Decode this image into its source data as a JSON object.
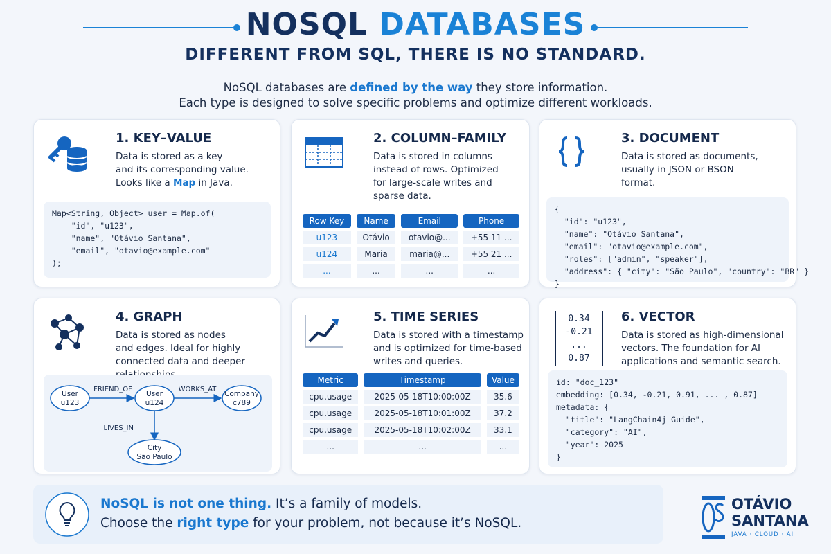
{
  "header": {
    "title": [
      "NOSQL",
      "DATABASES"
    ],
    "subtitle": "DIFFERENT FROM SQL, THERE IS NO STANDARD.",
    "intro": [
      [
        "NoSQL databases are ",
        {
          "text": "defined by the way",
          "style": "highlight"
        },
        " they store information."
      ],
      [
        "Each type is designed to solve specific problems and optimize different workloads."
      ]
    ]
  },
  "cards": [
    {
      "title": "1. KEY–VALUE",
      "description": [
        [
          "Data is stored as a key"
        ],
        [
          "and its corresponding value."
        ],
        [
          "Looks like a ",
          {
            "text": "Map",
            "style": "highlight"
          },
          " in Java."
        ]
      ],
      "code": [
        "Map<String, Object> user = Map.of(",
        "    \"id\", \"u123\",",
        "    \"name\", \"Otávio Santana\",",
        "    \"email\", \"otavio@example.com\"",
        ");"
      ]
    },
    {
      "title": "2. COLUMN–FAMILY",
      "description": [
        [
          "Data is stored in columns"
        ],
        [
          "instead of rows. Optimized"
        ],
        [
          "for large-scale writes and"
        ],
        [
          "sparse data."
        ]
      ],
      "table": {
        "columns": [
          "Row Key",
          "Name",
          "Email",
          "Phone"
        ],
        "rows": [
          [
            "u123",
            "Otávio",
            "otavio@...",
            "+55 11 ..."
          ],
          [
            "u124",
            "Maria",
            "maria@...",
            "+55 21 ..."
          ],
          [
            "...",
            "...",
            "...",
            "..."
          ]
        ]
      }
    },
    {
      "title": "3. DOCUMENT",
      "description": [
        [
          "Data is stored as documents,"
        ],
        [
          "usually in JSON or BSON"
        ],
        [
          "format."
        ]
      ],
      "code": [
        "{",
        "  \"id\": \"u123\",",
        "  \"name\": \"Otávio Santana\",",
        "  \"email\": \"otavio@example.com\",",
        "  \"roles\": [\"admin\", \"speaker\"],",
        "  \"address\": { \"city\": \"São Paulo\", \"country\": \"BR\" }",
        "}"
      ]
    },
    {
      "title": "4. GRAPH",
      "description": [
        [
          "Data is stored as nodes"
        ],
        [
          "and edges. Ideal for highly"
        ],
        [
          "connected data and deeper"
        ],
        [
          "relationships."
        ]
      ],
      "graph": {
        "nodes": [
          [
            "User",
            "u123"
          ],
          [
            "User",
            "u124"
          ],
          [
            "Company",
            "c789"
          ],
          [
            "City",
            "São Paulo"
          ]
        ],
        "edges": [
          "FRIEND_OF",
          "WORKS_AT",
          "LIVES_IN"
        ]
      }
    },
    {
      "title": "5. TIME SERIES",
      "description": [
        [
          "Data is stored with a timestamp"
        ],
        [
          "and is optimized for time-based"
        ],
        [
          "writes and queries."
        ]
      ],
      "table": {
        "columns": [
          "Metric",
          "Timestamp",
          "Value"
        ],
        "rows": [
          [
            "cpu.usage",
            "2025-05-18T10:00:00Z",
            35.6
          ],
          [
            "cpu.usage",
            "2025-05-18T10:01:00Z",
            37.2
          ],
          [
            "cpu.usage",
            "2025-05-18T10:02:00Z",
            33.1
          ],
          [
            "...",
            "...",
            "..."
          ]
        ]
      }
    },
    {
      "title": "6. VECTOR",
      "description": [
        [
          "Data is stored as high-dimensional"
        ],
        [
          "vectors. The foundation for AI"
        ],
        [
          "applications and semantic search."
        ]
      ],
      "vector_icon": [
        "0.34",
        "-0.21",
        "...",
        "0.87"
      ],
      "code": [
        "id: \"doc_123\"",
        "embedding: [0.34, -0.21, 0.91, ... , 0.87]",
        "metadata: {",
        "  \"title\": \"LangChain4j Guide\",",
        "  \"category\": \"AI\",",
        "  \"year\": 2025",
        "}"
      ]
    }
  ],
  "footer": {
    "lines": [
      [
        {
          "text": "NoSQL is not one thing.",
          "style": "highlight"
        },
        " It’s a family of models."
      ],
      [
        "Choose the ",
        {
          "text": "right type",
          "style": "highlight"
        },
        " for your problem, not because it’s NoSQL."
      ]
    ]
  },
  "logo": {
    "name": [
      "OTÁVIO",
      "SANTANA"
    ],
    "tagline": "JAVA · CLOUD · AI"
  }
}
